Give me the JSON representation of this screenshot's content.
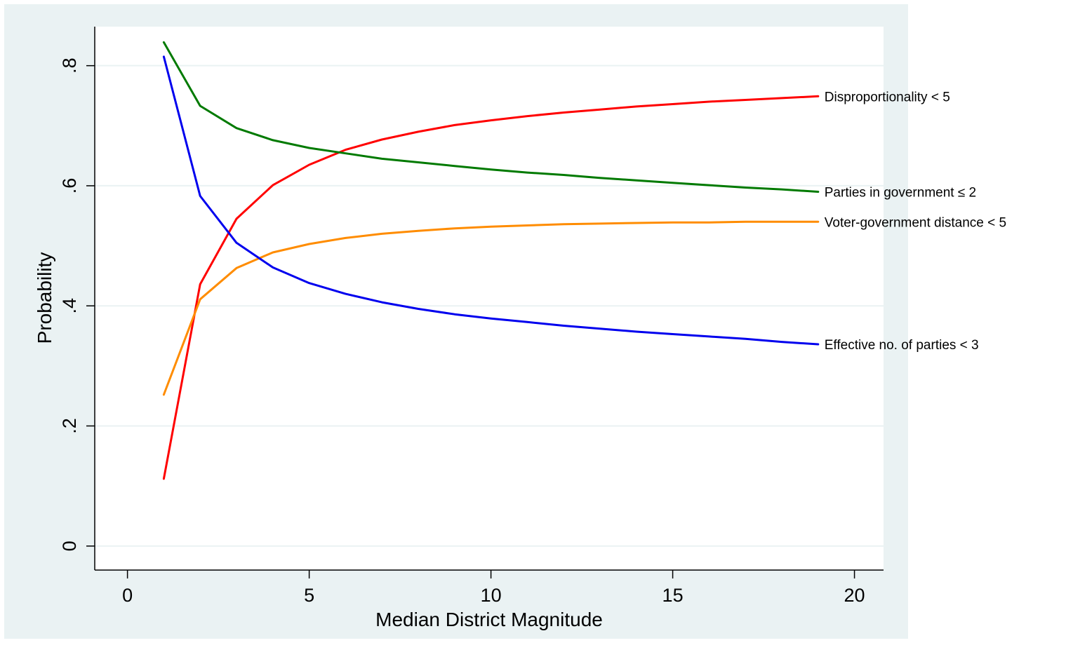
{
  "chart_data": {
    "type": "line",
    "title": "",
    "xlabel": "Median District Magnitude",
    "ylabel": "Probability",
    "xlim": [
      -0.9,
      20.8
    ],
    "ylim": [
      -0.04,
      0.865
    ],
    "xticks": [
      0,
      5,
      10,
      15,
      20
    ],
    "xtick_labels": [
      "0",
      "5",
      "10",
      "15",
      "20"
    ],
    "yticks": [
      0,
      0.2,
      0.4,
      0.6,
      0.8
    ],
    "ytick_labels": [
      "0",
      ".2",
      ".4",
      ".6",
      ".8"
    ],
    "grid": true,
    "legend": "series labels at line ends (right)",
    "series": [
      {
        "name": "Disproportionality < 5",
        "color": "#ff0000",
        "points": [
          [
            1,
            0.112
          ],
          [
            2,
            0.436
          ],
          [
            3,
            0.545
          ],
          [
            4,
            0.601
          ],
          [
            5,
            0.635
          ],
          [
            6,
            0.66
          ],
          [
            7,
            0.677
          ],
          [
            8,
            0.69
          ],
          [
            9,
            0.701
          ],
          [
            10,
            0.709
          ],
          [
            11,
            0.716
          ],
          [
            12,
            0.722
          ],
          [
            13,
            0.727
          ],
          [
            14,
            0.732
          ],
          [
            15,
            0.736
          ],
          [
            16,
            0.74
          ],
          [
            17,
            0.743
          ],
          [
            18,
            0.746
          ],
          [
            19,
            0.749
          ]
        ]
      },
      {
        "name": "Parties in government ≤ 2",
        "color": "#007a00",
        "points": [
          [
            1,
            0.839
          ],
          [
            2,
            0.733
          ],
          [
            3,
            0.696
          ],
          [
            4,
            0.676
          ],
          [
            5,
            0.663
          ],
          [
            6,
            0.654
          ],
          [
            7,
            0.645
          ],
          [
            8,
            0.639
          ],
          [
            9,
            0.633
          ],
          [
            10,
            0.627
          ],
          [
            11,
            0.622
          ],
          [
            12,
            0.618
          ],
          [
            13,
            0.613
          ],
          [
            14,
            0.609
          ],
          [
            15,
            0.605
          ],
          [
            16,
            0.601
          ],
          [
            17,
            0.597
          ],
          [
            18,
            0.594
          ],
          [
            19,
            0.59
          ]
        ]
      },
      {
        "name": "Voter-government distance < 5",
        "color": "#ff8c00",
        "points": [
          [
            1,
            0.252
          ],
          [
            2,
            0.411
          ],
          [
            3,
            0.463
          ],
          [
            4,
            0.489
          ],
          [
            5,
            0.503
          ],
          [
            6,
            0.513
          ],
          [
            7,
            0.52
          ],
          [
            8,
            0.525
          ],
          [
            9,
            0.529
          ],
          [
            10,
            0.532
          ],
          [
            11,
            0.534
          ],
          [
            12,
            0.536
          ],
          [
            13,
            0.537
          ],
          [
            14,
            0.538
          ],
          [
            15,
            0.539
          ],
          [
            16,
            0.539
          ],
          [
            17,
            0.54
          ],
          [
            18,
            0.54
          ],
          [
            19,
            0.54
          ]
        ]
      },
      {
        "name": "Effective no. of parties < 3",
        "color": "#0000ee",
        "points": [
          [
            1,
            0.815
          ],
          [
            2,
            0.583
          ],
          [
            3,
            0.505
          ],
          [
            4,
            0.464
          ],
          [
            5,
            0.438
          ],
          [
            6,
            0.42
          ],
          [
            7,
            0.406
          ],
          [
            8,
            0.395
          ],
          [
            9,
            0.386
          ],
          [
            10,
            0.379
          ],
          [
            11,
            0.373
          ],
          [
            12,
            0.367
          ],
          [
            13,
            0.362
          ],
          [
            14,
            0.357
          ],
          [
            15,
            0.353
          ],
          [
            16,
            0.349
          ],
          [
            17,
            0.345
          ],
          [
            18,
            0.34
          ],
          [
            19,
            0.336
          ]
        ]
      }
    ]
  },
  "colors": {
    "outer_background": "#eaf2f3",
    "plot_background": "#ffffff",
    "gridline": "#eaf2f3",
    "axis": "#000000"
  }
}
